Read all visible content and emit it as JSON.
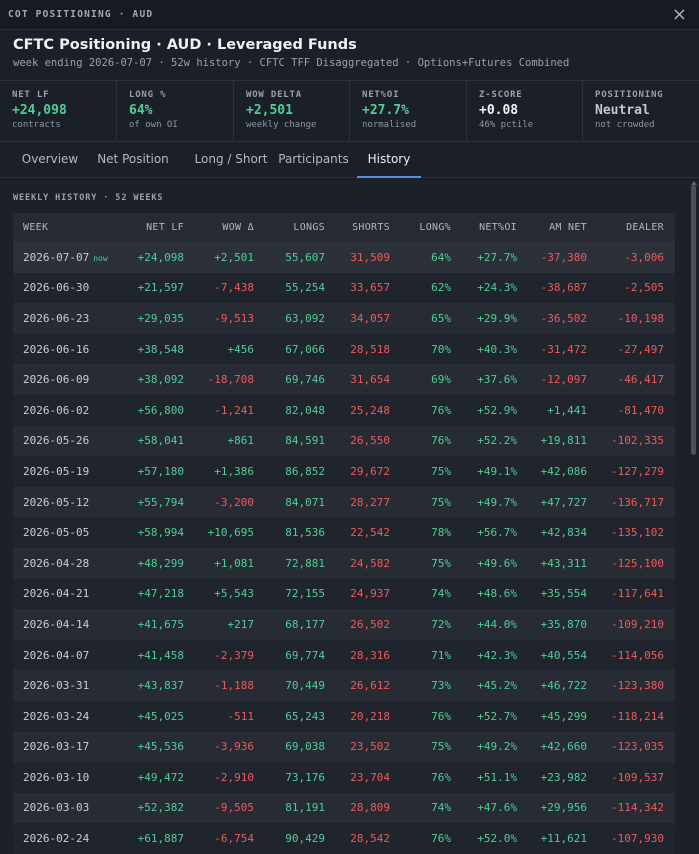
{
  "window": {
    "title": "COT POSITIONING · AUD",
    "close_icon": "close-icon"
  },
  "header": {
    "title": "CFTC Positioning · AUD · Leveraged Funds",
    "subtitle": "week ending 2026-07-07 · 52w history · CFTC TFF Disaggregated · Options+Futures Combined"
  },
  "metrics": [
    {
      "label": "NET LF",
      "value": "+24,098",
      "note": "contracts",
      "tone": "pos"
    },
    {
      "label": "LONG %",
      "value": "64%",
      "note": "of own OI",
      "tone": "pos"
    },
    {
      "label": "WOW DELTA",
      "value": "+2,501",
      "note": "weekly change",
      "tone": "pos"
    },
    {
      "label": "NET%OI",
      "value": "+27.7%",
      "note": "normalised",
      "tone": "pos"
    },
    {
      "label": "Z-SCORE",
      "value": "+0.08",
      "note": "46% pctile",
      "tone": "white"
    },
    {
      "label": "POSITIONING",
      "value": "Neutral",
      "note": "not crowded",
      "tone": "gray"
    }
  ],
  "tabs": [
    "Overview",
    "Net Position",
    "Long / Short",
    "Participants",
    "History"
  ],
  "active_tab": "History",
  "history": {
    "section_label": "WEEKLY HISTORY · 52 WEEKS",
    "now_tag": "now",
    "columns": [
      "WEEK",
      "NET LF",
      "WOW Δ",
      "LONGS",
      "SHORTS",
      "LONG%",
      "NET%OI",
      "AM NET",
      "DEALER"
    ],
    "rows": [
      [
        "2026-07-07",
        "+24,098",
        "+2,501",
        "55,607",
        "31,509",
        "64%",
        "+27.7%",
        "-37,380",
        "-3,006"
      ],
      [
        "2026-06-30",
        "+21,597",
        "-7,438",
        "55,254",
        "33,657",
        "62%",
        "+24.3%",
        "-38,687",
        "-2,505"
      ],
      [
        "2026-06-23",
        "+29,035",
        "-9,513",
        "63,092",
        "34,057",
        "65%",
        "+29.9%",
        "-36,502",
        "-10,198"
      ],
      [
        "2026-06-16",
        "+38,548",
        "+456",
        "67,066",
        "28,518",
        "70%",
        "+40.3%",
        "-31,472",
        "-27,497"
      ],
      [
        "2026-06-09",
        "+38,092",
        "-18,708",
        "69,746",
        "31,654",
        "69%",
        "+37.6%",
        "-12,097",
        "-46,417"
      ],
      [
        "2026-06-02",
        "+56,800",
        "-1,241",
        "82,048",
        "25,248",
        "76%",
        "+52.9%",
        "+1,441",
        "-81,470"
      ],
      [
        "2026-05-26",
        "+58,041",
        "+861",
        "84,591",
        "26,550",
        "76%",
        "+52.2%",
        "+19,811",
        "-102,335"
      ],
      [
        "2026-05-19",
        "+57,180",
        "+1,386",
        "86,852",
        "29,672",
        "75%",
        "+49.1%",
        "+42,086",
        "-127,279"
      ],
      [
        "2026-05-12",
        "+55,794",
        "-3,200",
        "84,071",
        "28,277",
        "75%",
        "+49.7%",
        "+47,727",
        "-136,717"
      ],
      [
        "2026-05-05",
        "+58,994",
        "+10,695",
        "81,536",
        "22,542",
        "78%",
        "+56.7%",
        "+42,834",
        "-135,102"
      ],
      [
        "2026-04-28",
        "+48,299",
        "+1,081",
        "72,881",
        "24,582",
        "75%",
        "+49.6%",
        "+43,311",
        "-125,100"
      ],
      [
        "2026-04-21",
        "+47,218",
        "+5,543",
        "72,155",
        "24,937",
        "74%",
        "+48.6%",
        "+35,554",
        "-117,641"
      ],
      [
        "2026-04-14",
        "+41,675",
        "+217",
        "68,177",
        "26,502",
        "72%",
        "+44.0%",
        "+35,870",
        "-109,210"
      ],
      [
        "2026-04-07",
        "+41,458",
        "-2,379",
        "69,774",
        "28,316",
        "71%",
        "+42.3%",
        "+40,554",
        "-114,056"
      ],
      [
        "2026-03-31",
        "+43,837",
        "-1,188",
        "70,449",
        "26,612",
        "73%",
        "+45.2%",
        "+46,722",
        "-123,380"
      ],
      [
        "2026-03-24",
        "+45,025",
        "-511",
        "65,243",
        "20,218",
        "76%",
        "+52.7%",
        "+45,299",
        "-118,214"
      ],
      [
        "2026-03-17",
        "+45,536",
        "-3,936",
        "69,038",
        "23,502",
        "75%",
        "+49.2%",
        "+42,660",
        "-123,035"
      ],
      [
        "2026-03-10",
        "+49,472",
        "-2,910",
        "73,176",
        "23,704",
        "76%",
        "+51.1%",
        "+23,982",
        "-109,537"
      ],
      [
        "2026-03-03",
        "+52,382",
        "-9,505",
        "81,191",
        "28,809",
        "74%",
        "+47.6%",
        "+29,956",
        "-114,342"
      ],
      [
        "2026-02-24",
        "+61,887",
        "-6,754",
        "90,429",
        "28,542",
        "76%",
        "+52.0%",
        "+11,621",
        "-107,930"
      ]
    ]
  },
  "colors": {
    "positive": "#4fcf98",
    "negative": "#ef5a5a",
    "accent": "#5b8ed6"
  }
}
